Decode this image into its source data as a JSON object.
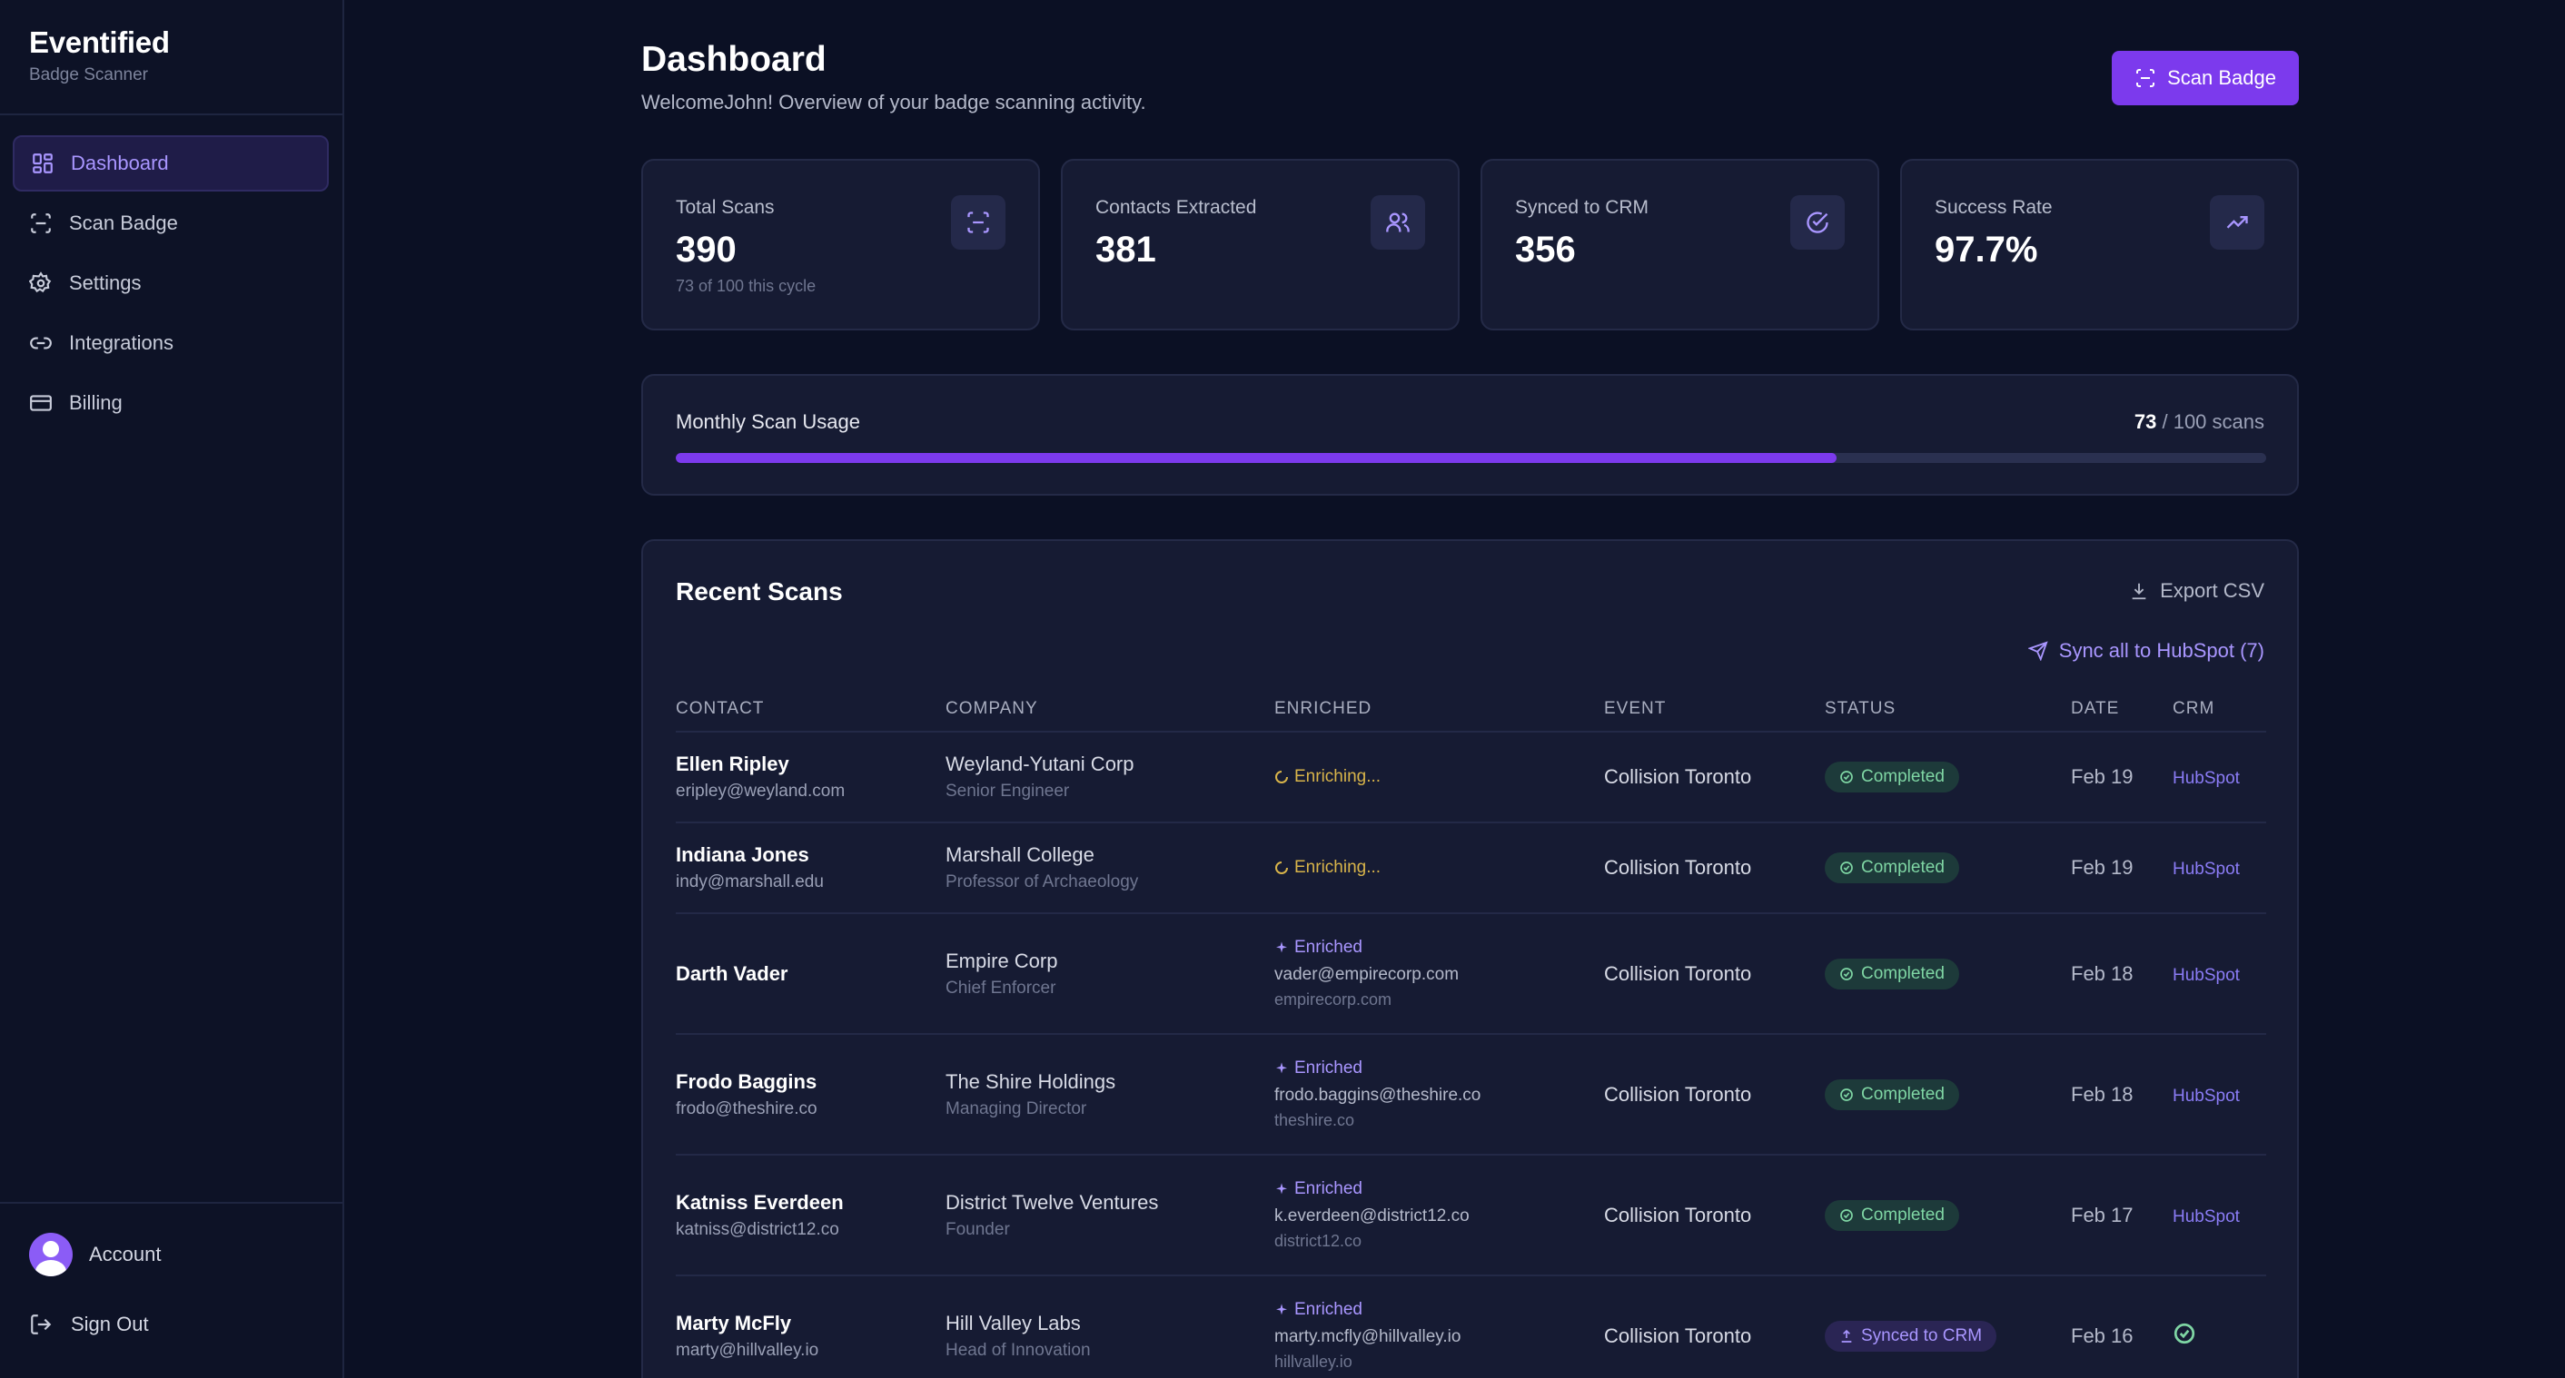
{
  "brand": {
    "title": "Eventified",
    "subtitle": "Badge Scanner"
  },
  "sidebar": {
    "items": [
      {
        "label": "Dashboard",
        "icon": "dashboard-icon",
        "active": true
      },
      {
        "label": "Scan Badge",
        "icon": "scan-icon"
      },
      {
        "label": "Settings",
        "icon": "gear-icon"
      },
      {
        "label": "Integrations",
        "icon": "link-icon"
      },
      {
        "label": "Billing",
        "icon": "credit-card-icon"
      }
    ],
    "account_label": "Account",
    "signout_label": "Sign Out"
  },
  "header": {
    "title": "Dashboard",
    "subtitle": "WelcomeJohn! Overview of your badge scanning activity.",
    "scan_button": "Scan Badge"
  },
  "stats": [
    {
      "label": "Total Scans",
      "value": "390",
      "note": "73 of 100 this cycle",
      "icon": "scan-icon"
    },
    {
      "label": "Contacts Extracted",
      "value": "381",
      "icon": "users-icon"
    },
    {
      "label": "Synced to CRM",
      "value": "356",
      "icon": "check-circle-icon"
    },
    {
      "label": "Success Rate",
      "value": "97.7%",
      "icon": "trending-up-icon"
    }
  ],
  "usage": {
    "title": "Monthly Scan Usage",
    "used": "73",
    "total_text": "/ 100 scans",
    "fraction": 0.73
  },
  "recent": {
    "title": "Recent Scans",
    "export_label": "Export CSV",
    "sync_all_label": "Sync all to HubSpot (7)",
    "columns": [
      "CONTACT",
      "COMPANY",
      "ENRICHED",
      "EVENT",
      "STATUS",
      "DATE",
      "CRM"
    ],
    "rows": [
      {
        "name": "Ellen Ripley",
        "email": "eripley@weyland.com",
        "company": "Weyland-Yutani Corp",
        "role": "Senior Engineer",
        "enriched_state": "Enriching...",
        "event": "Collision Toronto",
        "status": "Completed",
        "date": "Feb 19",
        "crm": "HubSpot"
      },
      {
        "name": "Indiana Jones",
        "email": "indy@marshall.edu",
        "company": "Marshall College",
        "role": "Professor of Archaeology",
        "enriched_state": "Enriching...",
        "event": "Collision Toronto",
        "status": "Completed",
        "date": "Feb 19",
        "crm": "HubSpot"
      },
      {
        "name": "Darth Vader",
        "email": "",
        "company": "Empire Corp",
        "role": "Chief Enforcer",
        "enriched_state": "Enriched",
        "enriched_email": "vader@empirecorp.com",
        "enriched_domain": "empirecorp.com",
        "event": "Collision Toronto",
        "status": "Completed",
        "date": "Feb 18",
        "crm": "HubSpot"
      },
      {
        "name": "Frodo Baggins",
        "email": "frodo@theshire.co",
        "company": "The Shire Holdings",
        "role": "Managing Director",
        "enriched_state": "Enriched",
        "enriched_email": "frodo.baggins@theshire.co",
        "enriched_domain": "theshire.co",
        "event": "Collision Toronto",
        "status": "Completed",
        "date": "Feb 18",
        "crm": "HubSpot"
      },
      {
        "name": "Katniss Everdeen",
        "email": "katniss@district12.co",
        "company": "District Twelve Ventures",
        "role": "Founder",
        "enriched_state": "Enriched",
        "enriched_email": "k.everdeen@district12.co",
        "enriched_domain": "district12.co",
        "event": "Collision Toronto",
        "status": "Completed",
        "date": "Feb 17",
        "crm": "HubSpot"
      },
      {
        "name": "Marty McFly",
        "email": "marty@hillvalley.io",
        "company": "Hill Valley Labs",
        "role": "Head of Innovation",
        "enriched_state": "Enriched",
        "enriched_email": "marty.mcfly@hillvalley.io",
        "enriched_domain": "hillvalley.io",
        "event": "Collision Toronto",
        "status": "Synced to CRM",
        "date": "Feb 16",
        "crm": "",
        "crm_icon": "check-circle-icon"
      }
    ]
  },
  "colors": {
    "accent": "#7c3aed",
    "accent_text": "#a996ff",
    "background": "#0b1024",
    "card": "#161b33",
    "success": "#7fd6a4",
    "warning": "#d8b44a"
  }
}
